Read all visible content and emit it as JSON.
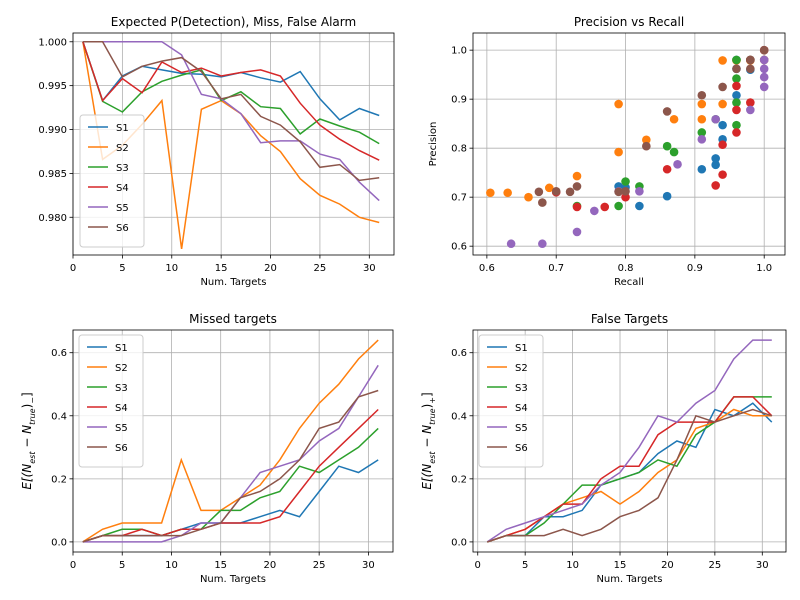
{
  "figure": {
    "colors": [
      "#1f77b4",
      "#ff7f0e",
      "#2ca02c",
      "#d62728",
      "#9467bd",
      "#8c564b"
    ]
  },
  "chart_data": [
    {
      "type": "line",
      "title": "Expected P(Detection), Miss, False Alarm",
      "xlabel": "Num. Targets",
      "ylabel": "",
      "xlim": [
        0,
        32.5
      ],
      "ylim": [
        0.9757,
        1.001
      ],
      "xticks": [
        0,
        5,
        10,
        15,
        20,
        25,
        30
      ],
      "yticks": [
        0.98,
        0.985,
        0.99,
        0.995,
        1.0
      ],
      "ytick_labels": [
        "0.980",
        "0.985",
        "0.990",
        "0.995",
        "1.000"
      ],
      "grid": true,
      "legend": "center-left",
      "x": [
        1,
        3,
        5,
        7,
        9,
        11,
        13,
        15,
        17,
        19,
        21,
        23,
        25,
        27,
        29,
        31
      ],
      "series": [
        {
          "name": "S1",
          "values": [
            1.0,
            0.9933,
            0.9961,
            0.9972,
            0.9968,
            0.9964,
            0.9963,
            0.996,
            0.9965,
            0.9959,
            0.9954,
            0.9966,
            0.9935,
            0.9911,
            0.9924,
            0.9916
          ]
        },
        {
          "name": "S2",
          "values": [
            1.0,
            0.9866,
            0.9882,
            0.9906,
            0.9933,
            0.9764,
            0.9923,
            0.9933,
            0.9918,
            0.9893,
            0.9875,
            0.9844,
            0.9825,
            0.9815,
            0.98,
            0.9794
          ]
        },
        {
          "name": "S3",
          "values": [
            1.0,
            0.9932,
            0.992,
            0.9943,
            0.9955,
            0.9962,
            0.9968,
            0.9933,
            0.9943,
            0.9926,
            0.9924,
            0.9895,
            0.9912,
            0.9904,
            0.9897,
            0.9884
          ]
        },
        {
          "name": "S4",
          "values": [
            1.0,
            0.9933,
            0.9958,
            0.9942,
            0.9977,
            0.9965,
            0.997,
            0.9961,
            0.9965,
            0.9968,
            0.9961,
            0.993,
            0.9905,
            0.9889,
            0.9876,
            0.9865
          ]
        },
        {
          "name": "S5",
          "values": [
            1.0,
            1.0,
            1.0,
            1.0,
            1.0,
            0.9985,
            0.994,
            0.9935,
            0.9918,
            0.9885,
            0.9887,
            0.9887,
            0.9872,
            0.9866,
            0.984,
            0.9819
          ]
        },
        {
          "name": "S6",
          "values": [
            1.0,
            1.0,
            0.996,
            0.9972,
            0.9978,
            0.9982,
            0.9966,
            0.9935,
            0.994,
            0.9915,
            0.9905,
            0.9886,
            0.9857,
            0.986,
            0.9842,
            0.9845
          ]
        }
      ]
    },
    {
      "type": "scatter",
      "title": "Precision vs Recall",
      "xlabel": "Recall",
      "ylabel": "Precision",
      "xlim": [
        0.58,
        1.03
      ],
      "ylim": [
        0.582,
        1.035
      ],
      "xticks": [
        0.6,
        0.7,
        0.8,
        0.9,
        1.0
      ],
      "xtick_labels": [
        "0.6",
        "0.7",
        "0.8",
        "0.9",
        "1.0"
      ],
      "yticks": [
        0.6,
        0.7,
        0.8,
        0.9,
        1.0
      ],
      "ytick_labels": [
        "0.6",
        "0.7",
        "0.8",
        "0.9",
        "1.0"
      ],
      "grid": true,
      "series": [
        {
          "name": "S1",
          "points": [
            [
              0.79,
              0.722
            ],
            [
              0.82,
              0.682
            ],
            [
              0.86,
              0.702
            ],
            [
              0.91,
              0.757
            ],
            [
              0.93,
              0.766
            ],
            [
              0.93,
              0.779
            ],
            [
              0.94,
              0.818
            ],
            [
              0.94,
              0.847
            ],
            [
              0.96,
              0.908
            ],
            [
              0.96,
              0.962
            ],
            [
              0.98,
              0.96
            ],
            [
              1.0,
              0.98
            ],
            [
              0.98,
              0.98
            ],
            [
              0.96,
              0.98
            ],
            [
              0.8,
              0.72
            ]
          ]
        },
        {
          "name": "S2",
          "points": [
            [
              0.605,
              0.709
            ],
            [
              0.63,
              0.709
            ],
            [
              0.66,
              0.7
            ],
            [
              0.69,
              0.719
            ],
            [
              0.73,
              0.743
            ],
            [
              0.79,
              0.89
            ],
            [
              0.79,
              0.792
            ],
            [
              0.83,
              0.817
            ],
            [
              0.87,
              0.859
            ],
            [
              0.91,
              0.859
            ],
            [
              0.91,
              0.89
            ],
            [
              0.94,
              0.89
            ],
            [
              0.94,
              0.979
            ],
            [
              0.96,
              0.979
            ],
            [
              0.98,
              0.979
            ],
            [
              1.0,
              0.98
            ]
          ]
        },
        {
          "name": "S3",
          "points": [
            [
              0.73,
              0.682
            ],
            [
              0.79,
              0.682
            ],
            [
              0.8,
              0.732
            ],
            [
              0.82,
              0.722
            ],
            [
              0.86,
              0.804
            ],
            [
              0.87,
              0.792
            ],
            [
              0.91,
              0.832
            ],
            [
              0.93,
              0.859
            ],
            [
              0.96,
              0.847
            ],
            [
              0.96,
              0.893
            ],
            [
              0.96,
              0.942
            ],
            [
              0.96,
              0.98
            ],
            [
              0.98,
              0.98
            ]
          ]
        },
        {
          "name": "S4",
          "points": [
            [
              0.7,
              0.71
            ],
            [
              0.73,
              0.68
            ],
            [
              0.77,
              0.68
            ],
            [
              0.8,
              0.7
            ],
            [
              0.86,
              0.757
            ],
            [
              0.93,
              0.724
            ],
            [
              0.94,
              0.746
            ],
            [
              0.94,
              0.807
            ],
            [
              0.96,
              0.832
            ],
            [
              0.96,
              0.878
            ],
            [
              0.96,
              0.927
            ],
            [
              0.98,
              0.893
            ],
            [
              0.98,
              0.98
            ],
            [
              1.0,
              1.0
            ]
          ]
        },
        {
          "name": "S5",
          "points": [
            [
              0.635,
              0.605
            ],
            [
              0.68,
              0.605
            ],
            [
              0.73,
              0.629
            ],
            [
              0.755,
              0.672
            ],
            [
              0.79,
              0.712
            ],
            [
              0.82,
              0.712
            ],
            [
              0.875,
              0.767
            ],
            [
              0.91,
              0.818
            ],
            [
              0.93,
              0.859
            ],
            [
              0.98,
              0.878
            ],
            [
              1.0,
              0.925
            ],
            [
              1.0,
              0.945
            ],
            [
              1.0,
              0.962
            ],
            [
              1.0,
              0.98
            ]
          ]
        },
        {
          "name": "S6",
          "points": [
            [
              0.675,
              0.711
            ],
            [
              0.68,
              0.689
            ],
            [
              0.7,
              0.712
            ],
            [
              0.72,
              0.711
            ],
            [
              0.73,
              0.722
            ],
            [
              0.79,
              0.711
            ],
            [
              0.8,
              0.712
            ],
            [
              0.83,
              0.804
            ],
            [
              0.86,
              0.875
            ],
            [
              0.91,
              0.908
            ],
            [
              0.94,
              0.925
            ],
            [
              0.96,
              0.962
            ],
            [
              0.98,
              0.962
            ],
            [
              0.98,
              0.98
            ],
            [
              1.0,
              1.0
            ]
          ]
        }
      ]
    },
    {
      "type": "line",
      "title": "Missed targets",
      "xlabel": "Num. Targets",
      "ylabel": "E[(N_est - N_true)_-]",
      "xlim": [
        0,
        32.5
      ],
      "ylim": [
        -0.032,
        0.672
      ],
      "xticks": [
        0,
        5,
        10,
        15,
        20,
        25,
        30
      ],
      "yticks": [
        0.0,
        0.2,
        0.4,
        0.6
      ],
      "ytick_labels": [
        "0.0",
        "0.2",
        "0.4",
        "0.6"
      ],
      "grid": true,
      "legend": "top-left",
      "x": [
        1,
        3,
        5,
        7,
        9,
        11,
        13,
        15,
        17,
        19,
        21,
        23,
        25,
        27,
        29,
        31
      ],
      "series": [
        {
          "name": "S1",
          "values": [
            0.0,
            0.02,
            0.02,
            0.02,
            0.02,
            0.04,
            0.06,
            0.06,
            0.06,
            0.08,
            0.1,
            0.08,
            0.16,
            0.24,
            0.22,
            0.26
          ]
        },
        {
          "name": "S2",
          "values": [
            0.0,
            0.04,
            0.06,
            0.06,
            0.06,
            0.26,
            0.1,
            0.1,
            0.14,
            0.18,
            0.26,
            0.36,
            0.44,
            0.5,
            0.58,
            0.64
          ]
        },
        {
          "name": "S3",
          "values": [
            0.0,
            0.02,
            0.04,
            0.04,
            0.02,
            0.04,
            0.04,
            0.1,
            0.1,
            0.14,
            0.16,
            0.24,
            0.22,
            0.26,
            0.3,
            0.36
          ]
        },
        {
          "name": "S4",
          "values": [
            0.0,
            0.02,
            0.02,
            0.04,
            0.02,
            0.04,
            0.04,
            0.06,
            0.06,
            0.06,
            0.08,
            0.16,
            0.24,
            0.3,
            0.36,
            0.42
          ]
        },
        {
          "name": "S5",
          "values": [
            0.0,
            0.0,
            0.0,
            0.0,
            0.0,
            0.02,
            0.06,
            0.06,
            0.14,
            0.22,
            0.24,
            0.26,
            0.32,
            0.36,
            0.46,
            0.56
          ]
        },
        {
          "name": "S6",
          "values": [
            0.0,
            0.02,
            0.02,
            0.02,
            0.02,
            0.02,
            0.04,
            0.06,
            0.14,
            0.16,
            0.2,
            0.26,
            0.36,
            0.38,
            0.46,
            0.48
          ]
        }
      ]
    },
    {
      "type": "line",
      "title": "False Targets",
      "xlabel": "Num. Targets",
      "ylabel": "E[(N_est - N_true)_+]",
      "xlim": [
        -0.5,
        32.5
      ],
      "ylim": [
        -0.032,
        0.672
      ],
      "xticks": [
        0,
        5,
        10,
        15,
        20,
        25,
        30
      ],
      "yticks": [
        0.0,
        0.2,
        0.4,
        0.6
      ],
      "ytick_labels": [
        "0.0",
        "0.2",
        "0.4",
        "0.6"
      ],
      "grid": true,
      "legend": "top-left",
      "x": [
        1,
        3,
        5,
        7,
        9,
        11,
        13,
        15,
        17,
        19,
        21,
        23,
        25,
        27,
        29,
        31
      ],
      "series": [
        {
          "name": "S1",
          "values": [
            0.0,
            0.02,
            0.02,
            0.08,
            0.08,
            0.1,
            0.18,
            0.2,
            0.22,
            0.28,
            0.32,
            0.3,
            0.42,
            0.4,
            0.44,
            0.38
          ]
        },
        {
          "name": "S2",
          "values": [
            0.0,
            0.02,
            0.04,
            0.08,
            0.12,
            0.14,
            0.16,
            0.12,
            0.16,
            0.22,
            0.26,
            0.36,
            0.38,
            0.42,
            0.4,
            0.4
          ]
        },
        {
          "name": "S3",
          "values": [
            0.0,
            0.02,
            0.02,
            0.06,
            0.12,
            0.18,
            0.18,
            0.2,
            0.22,
            0.26,
            0.24,
            0.34,
            0.38,
            0.46,
            0.46,
            0.46
          ]
        },
        {
          "name": "S4",
          "values": [
            0.0,
            0.02,
            0.04,
            0.08,
            0.12,
            0.12,
            0.2,
            0.24,
            0.24,
            0.34,
            0.38,
            0.38,
            0.38,
            0.46,
            0.46,
            0.4
          ]
        },
        {
          "name": "S5",
          "values": [
            0.0,
            0.04,
            0.06,
            0.08,
            0.1,
            0.12,
            0.18,
            0.22,
            0.3,
            0.4,
            0.38,
            0.44,
            0.48,
            0.58,
            0.64,
            0.64
          ]
        },
        {
          "name": "S6",
          "values": [
            0.0,
            0.02,
            0.02,
            0.02,
            0.04,
            0.02,
            0.04,
            0.08,
            0.1,
            0.14,
            0.26,
            0.4,
            0.38,
            0.4,
            0.42,
            0.4
          ]
        }
      ]
    }
  ]
}
